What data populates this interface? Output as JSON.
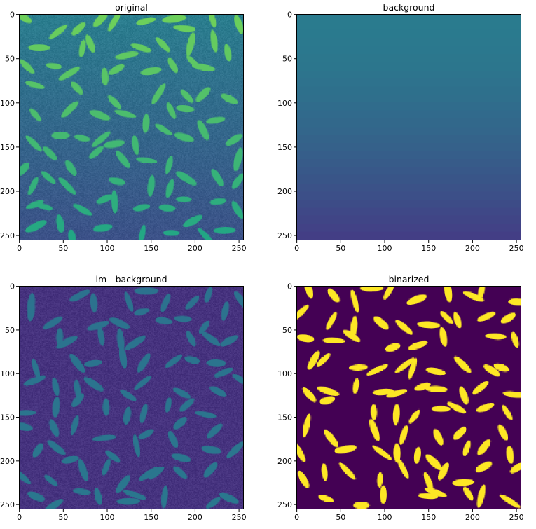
{
  "figure": {
    "panels": [
      {
        "id": "original",
        "title": "original",
        "image": {
          "kind": "rice-grains",
          "seed": 11,
          "bg_top": "#2a7e8e",
          "bg_bottom": "#3c5188",
          "grain_top": "#6ed05a",
          "grain_bottom": "#21a685",
          "noise": 16
        }
      },
      {
        "id": "background",
        "title": "background",
        "image": {
          "kind": "gradient-bands",
          "bg_top": "#2a7b8e",
          "bg_bottom": "#433e85",
          "bands": 28
        }
      },
      {
        "id": "im-minus-background",
        "title": "im - background",
        "image": {
          "kind": "rice-grains",
          "seed": 29,
          "bg_top": "#46327e",
          "bg_bottom": "#46337f",
          "grain_top": "#2c728e",
          "grain_bottom": "#2a778e",
          "noise": 18
        }
      },
      {
        "id": "binarized",
        "title": "binarized",
        "image": {
          "kind": "rice-grains",
          "seed": 47,
          "bg_top": "#440154",
          "bg_bottom": "#440154",
          "grain_top": "#fde725",
          "grain_bottom": "#fde725",
          "noise": 0
        }
      }
    ],
    "x_ticks": [
      "0",
      "50",
      "100",
      "150",
      "200",
      "250"
    ],
    "y_ticks": [
      "0",
      "50",
      "100",
      "150",
      "200",
      "250"
    ]
  },
  "chart_data": [
    {
      "type": "heatmap",
      "title": "original",
      "xlim": [
        0,
        256
      ],
      "ylim": [
        256,
        0
      ],
      "x_ticks": [
        0,
        50,
        100,
        150,
        200,
        250
      ],
      "y_ticks": [
        0,
        50,
        100,
        150,
        200,
        250
      ],
      "colormap": "viridis"
    },
    {
      "type": "heatmap",
      "title": "background",
      "xlim": [
        0,
        256
      ],
      "ylim": [
        256,
        0
      ],
      "x_ticks": [
        0,
        50,
        100,
        150,
        200,
        250
      ],
      "y_ticks": [
        0,
        50,
        100,
        150,
        200,
        250
      ],
      "colormap": "viridis"
    },
    {
      "type": "heatmap",
      "title": "im - background",
      "xlim": [
        0,
        256
      ],
      "ylim": [
        256,
        0
      ],
      "x_ticks": [
        0,
        50,
        100,
        150,
        200,
        250
      ],
      "y_ticks": [
        0,
        50,
        100,
        150,
        200,
        250
      ],
      "colormap": "viridis"
    },
    {
      "type": "heatmap",
      "title": "binarized",
      "xlim": [
        0,
        256
      ],
      "ylim": [
        256,
        0
      ],
      "x_ticks": [
        0,
        50,
        100,
        150,
        200,
        250
      ],
      "y_ticks": [
        0,
        50,
        100,
        150,
        200,
        250
      ],
      "colormap": "viridis"
    }
  ]
}
